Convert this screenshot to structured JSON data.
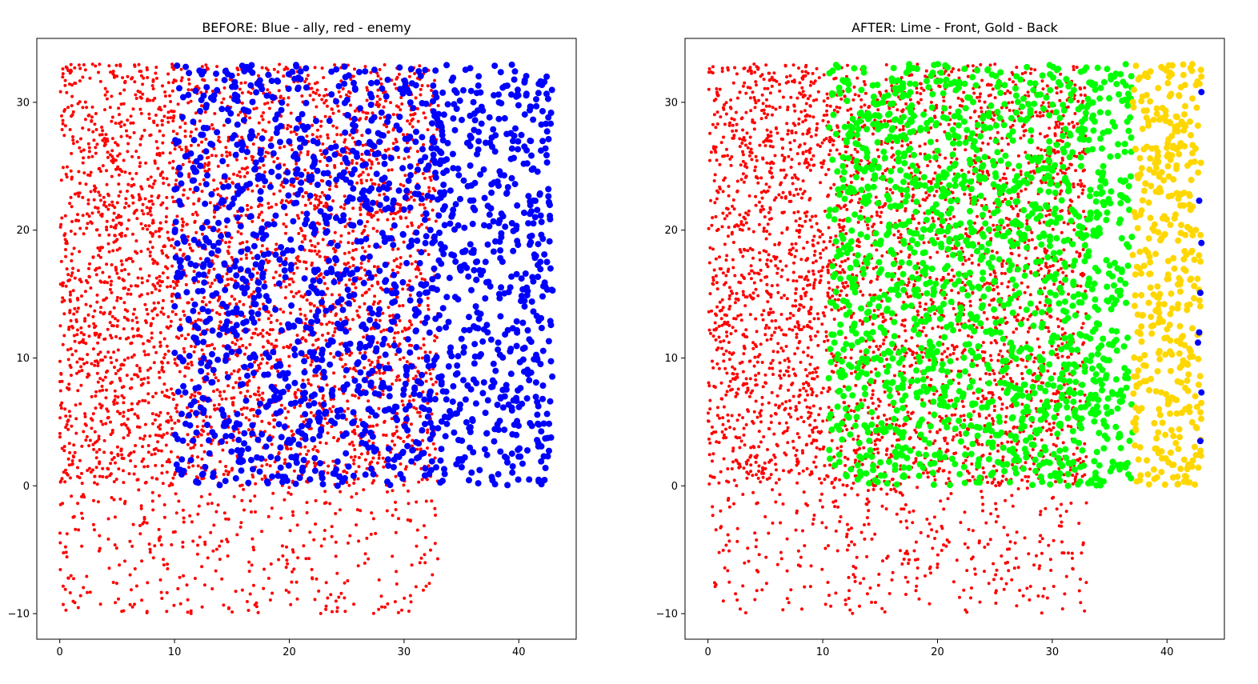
{
  "figure": {
    "background": "#ffffff"
  },
  "colors": {
    "red": "#ff0000",
    "blue": "#0000ff",
    "lime": "#00ff00",
    "gold": "#ffd700"
  },
  "chart_data": [
    {
      "type": "scatter",
      "title": "BEFORE: Blue - ally, red - enemy",
      "xlabel": "",
      "ylabel": "",
      "xlim": [
        -2,
        45
      ],
      "ylim": [
        -12,
        35
      ],
      "xticks": [
        0,
        10,
        20,
        30,
        40
      ],
      "yticks": [
        -10,
        0,
        10,
        20,
        30
      ],
      "xtick_labels": [
        "0",
        "10",
        "20",
        "30",
        "40"
      ],
      "ytick_labels": [
        "−10",
        "0",
        "10",
        "20",
        "30"
      ],
      "grid": false,
      "legend": "none",
      "series": [
        {
          "color": "#ff0000",
          "marker": "small-dot",
          "regions": [
            {
              "x": [
                0,
                10
              ],
              "y": [
                0,
                33
              ],
              "count": 1150
            },
            {
              "x": [
                10,
                33
              ],
              "y": [
                0,
                33
              ],
              "count": 2300
            },
            {
              "x": [
                0,
                33
              ],
              "y": [
                -10,
                0
              ],
              "count": 360
            }
          ]
        },
        {
          "color": "#0000ff",
          "marker": "large-dot",
          "regions": [
            {
              "x": [
                10,
                33
              ],
              "y": [
                0,
                33
              ],
              "count": 1150
            },
            {
              "x": [
                33,
                43
              ],
              "y": [
                0,
                33
              ],
              "count": 560
            }
          ]
        }
      ]
    },
    {
      "type": "scatter",
      "title": "AFTER: Lime - Front, Gold - Back",
      "xlabel": "",
      "ylabel": "",
      "xlim": [
        -2,
        45
      ],
      "ylim": [
        -12,
        35
      ],
      "xticks": [
        0,
        10,
        20,
        30,
        40
      ],
      "yticks": [
        -10,
        0,
        10,
        20,
        30
      ],
      "xtick_labels": [
        "0",
        "10",
        "20",
        "30",
        "40"
      ],
      "ytick_labels": [
        "−10",
        "0",
        "10",
        "20",
        "30"
      ],
      "grid": false,
      "legend": "none",
      "series": [
        {
          "color": "#ff0000",
          "marker": "small-dot",
          "regions": [
            {
              "x": [
                0,
                10
              ],
              "y": [
                0,
                33
              ],
              "count": 1150
            },
            {
              "x": [
                10,
                33
              ],
              "y": [
                0,
                33
              ],
              "count": 2300
            },
            {
              "x": [
                0,
                33
              ],
              "y": [
                -10,
                0
              ],
              "count": 360
            }
          ]
        },
        {
          "color": "#00ff00",
          "marker": "large-dot",
          "regions": [
            {
              "x": [
                10.5,
                37
              ],
              "y": [
                0,
                33
              ],
              "count": 1650
            }
          ]
        },
        {
          "color": "#ffd700",
          "marker": "large-dot",
          "regions": [
            {
              "x": [
                37,
                43
              ],
              "y": [
                0,
                33
              ],
              "count": 420
            }
          ]
        },
        {
          "color": "#0000ff",
          "marker": "large-dot",
          "points": [
            [
              43,
              30.8
            ],
            [
              42.8,
              22.3
            ],
            [
              43,
              19
            ],
            [
              42.9,
              15.1
            ],
            [
              42.8,
              12
            ],
            [
              42.7,
              11.2
            ],
            [
              43,
              7.3
            ],
            [
              42.9,
              3.5
            ]
          ]
        }
      ]
    }
  ]
}
